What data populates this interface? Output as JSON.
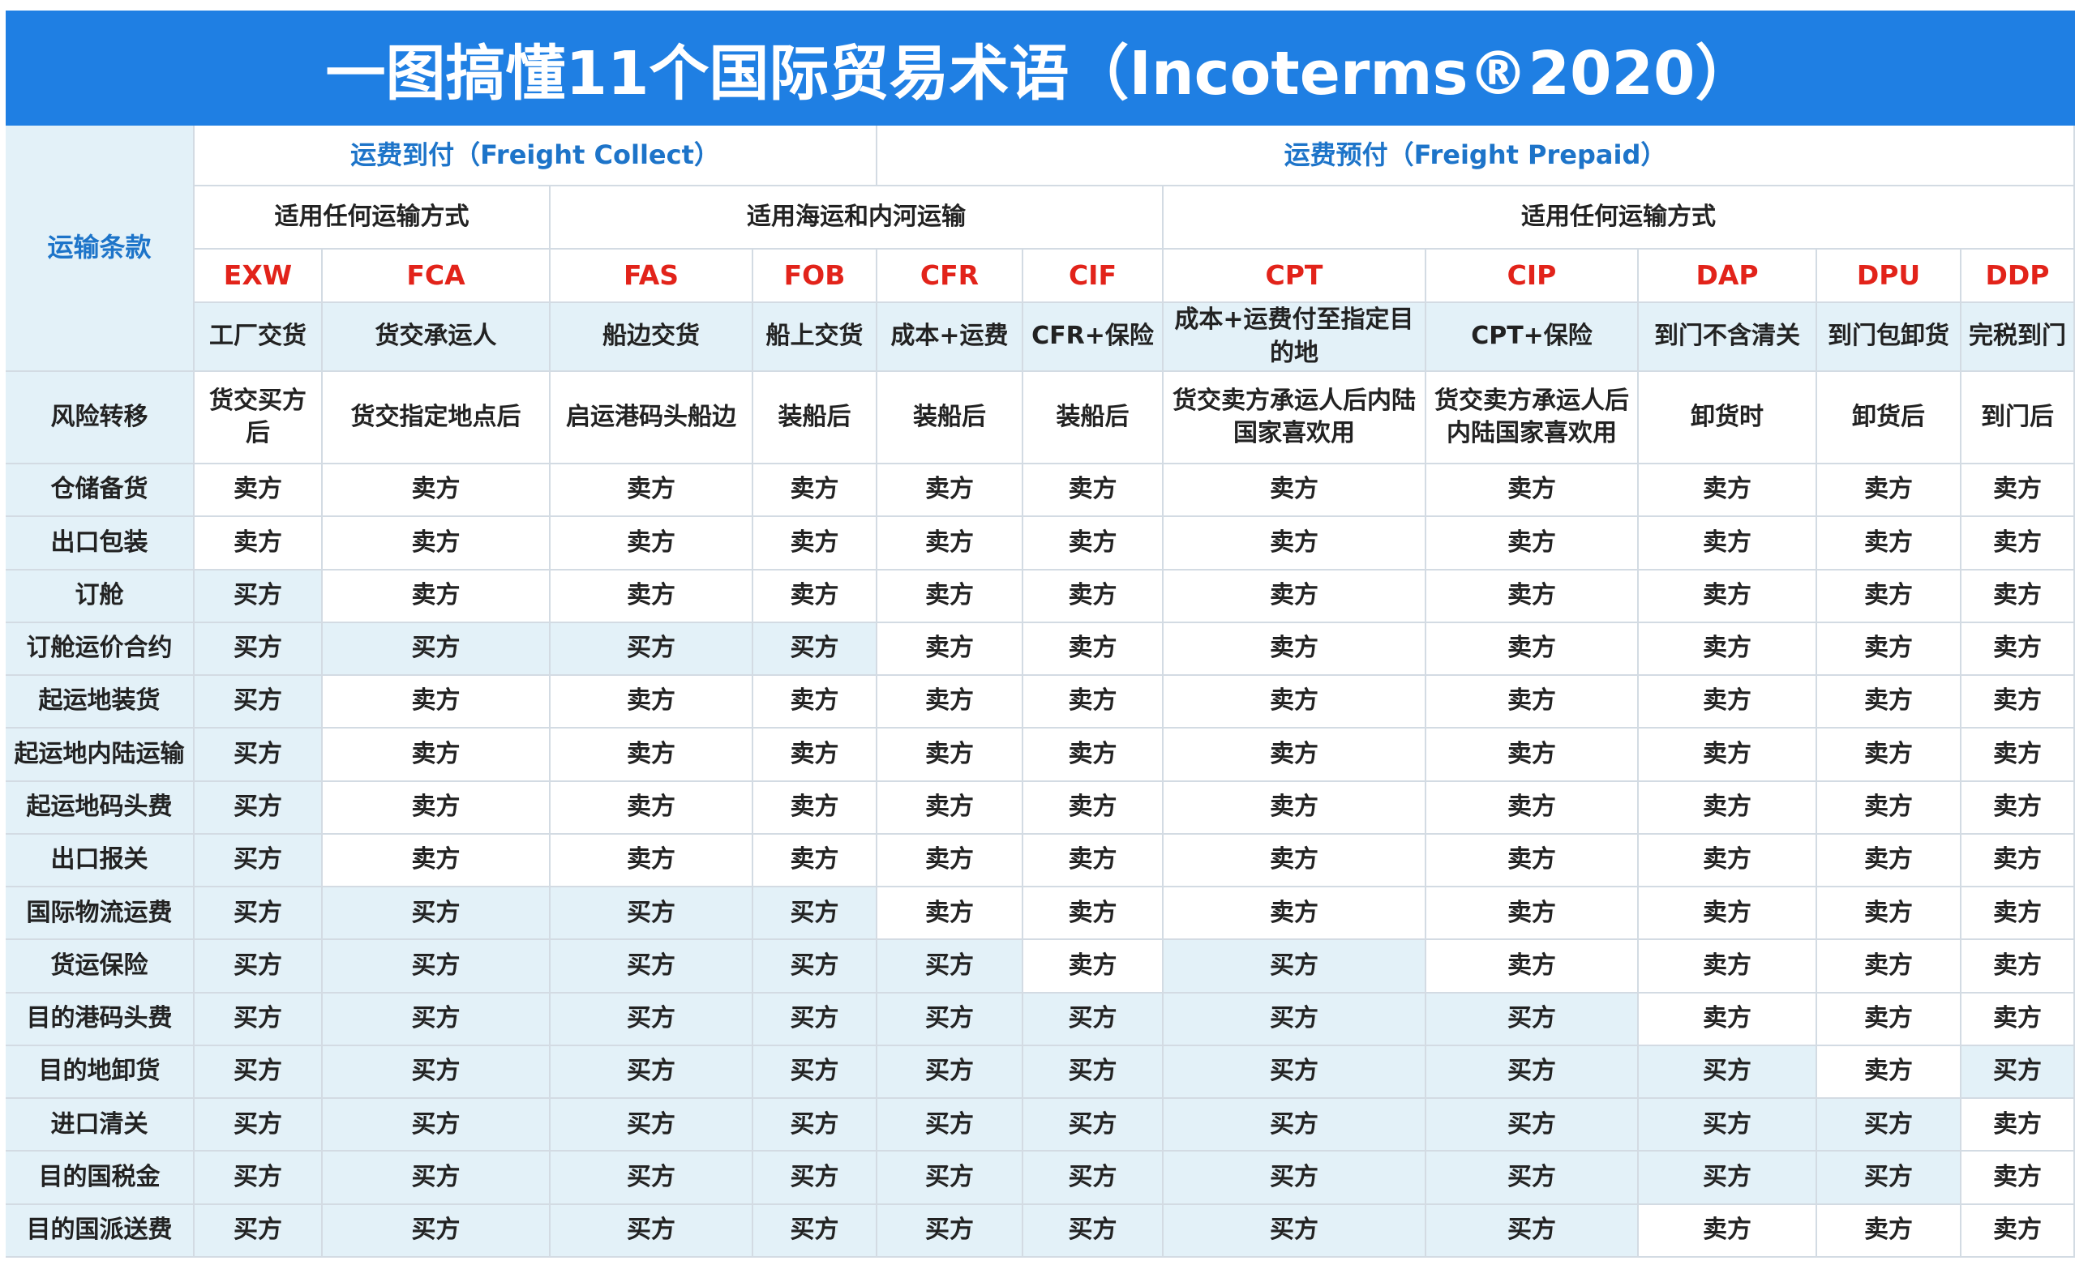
{
  "header": {
    "title": "一图搞懂11个国际贸易术语（Incoterms®2020）"
  },
  "table": {
    "corner": "运输条款",
    "freight": [
      "运费到付（Freight Collect）",
      "运费预付（Freight Prepaid）"
    ],
    "transport": [
      "适用任何运输方式",
      "适用海运和内河运输",
      "适用任何运输方式"
    ],
    "risk_label": "风险转移",
    "terms": [
      {
        "code": "EXW",
        "name": "工厂交货",
        "risk": "货交买方后"
      },
      {
        "code": "FCA",
        "name": "货交承运人",
        "risk": "货交指定地点后"
      },
      {
        "code": "FAS",
        "name": "船边交货",
        "risk": "启运港码头船边"
      },
      {
        "code": "FOB",
        "name": "船上交货",
        "risk": "装船后"
      },
      {
        "code": "CFR",
        "name": "成本+运费",
        "risk": "装船后"
      },
      {
        "code": "CIF",
        "name": "CFR+保险",
        "risk": "装船后"
      },
      {
        "code": "CPT",
        "name": "成本+运费付至指定目的地",
        "risk": "货交卖方承运人后内陆国家喜欢用"
      },
      {
        "code": "CIP",
        "name": "CPT+保险",
        "risk": "货交卖方承运人后内陆国家喜欢用"
      },
      {
        "code": "DAP",
        "name": "到门不含清关",
        "risk": "卸货时"
      },
      {
        "code": "DPU",
        "name": "到门包卸货",
        "risk": "卸货后"
      },
      {
        "code": "DDP",
        "name": "完税到门",
        "risk": "到门后"
      }
    ],
    "rows": [
      {
        "label": "仓储备货",
        "cells": [
          "卖方",
          "卖方",
          "卖方",
          "卖方",
          "卖方",
          "卖方",
          "卖方",
          "卖方",
          "卖方",
          "卖方",
          "卖方"
        ]
      },
      {
        "label": "出口包装",
        "cells": [
          "卖方",
          "卖方",
          "卖方",
          "卖方",
          "卖方",
          "卖方",
          "卖方",
          "卖方",
          "卖方",
          "卖方",
          "卖方"
        ]
      },
      {
        "label": "订舱",
        "cells": [
          "买方",
          "卖方",
          "卖方",
          "卖方",
          "卖方",
          "卖方",
          "卖方",
          "卖方",
          "卖方",
          "卖方",
          "卖方"
        ]
      },
      {
        "label": "订舱运价合约",
        "cells": [
          "买方",
          "买方",
          "买方",
          "买方",
          "卖方",
          "卖方",
          "卖方",
          "卖方",
          "卖方",
          "卖方",
          "卖方"
        ]
      },
      {
        "label": "起运地装货",
        "cells": [
          "买方",
          "卖方",
          "卖方",
          "卖方",
          "卖方",
          "卖方",
          "卖方",
          "卖方",
          "卖方",
          "卖方",
          "卖方"
        ]
      },
      {
        "label": "起运地内陆运输",
        "cells": [
          "买方",
          "卖方",
          "卖方",
          "卖方",
          "卖方",
          "卖方",
          "卖方",
          "卖方",
          "卖方",
          "卖方",
          "卖方"
        ]
      },
      {
        "label": "起运地码头费",
        "cells": [
          "买方",
          "卖方",
          "卖方",
          "卖方",
          "卖方",
          "卖方",
          "卖方",
          "卖方",
          "卖方",
          "卖方",
          "卖方"
        ]
      },
      {
        "label": "出口报关",
        "cells": [
          "买方",
          "卖方",
          "卖方",
          "卖方",
          "卖方",
          "卖方",
          "卖方",
          "卖方",
          "卖方",
          "卖方",
          "卖方"
        ]
      },
      {
        "label": "国际物流运费",
        "cells": [
          "买方",
          "买方",
          "买方",
          "买方",
          "卖方",
          "卖方",
          "卖方",
          "卖方",
          "卖方",
          "卖方",
          "卖方"
        ]
      },
      {
        "label": "货运保险",
        "cells": [
          "买方",
          "买方",
          "买方",
          "买方",
          "买方",
          "卖方",
          "买方",
          "卖方",
          "卖方",
          "卖方",
          "卖方"
        ]
      },
      {
        "label": "目的港码头费",
        "cells": [
          "买方",
          "买方",
          "买方",
          "买方",
          "买方",
          "买方",
          "买方",
          "买方",
          "卖方",
          "卖方",
          "卖方"
        ]
      },
      {
        "label": "目的地卸货",
        "cells": [
          "买方",
          "买方",
          "买方",
          "买方",
          "买方",
          "买方",
          "买方",
          "买方",
          "买方",
          "卖方",
          "买方"
        ]
      },
      {
        "label": "进口清关",
        "cells": [
          "买方",
          "买方",
          "买方",
          "买方",
          "买方",
          "买方",
          "买方",
          "买方",
          "买方",
          "买方",
          "卖方"
        ]
      },
      {
        "label": "目的国税金",
        "cells": [
          "买方",
          "买方",
          "买方",
          "买方",
          "买方",
          "买方",
          "买方",
          "买方",
          "买方",
          "买方",
          "卖方"
        ]
      },
      {
        "label": "目的国派送费",
        "cells": [
          "买方",
          "买方",
          "买方",
          "买方",
          "买方",
          "买方",
          "买方",
          "买方",
          "卖方",
          "卖方",
          "卖方"
        ]
      }
    ]
  }
}
